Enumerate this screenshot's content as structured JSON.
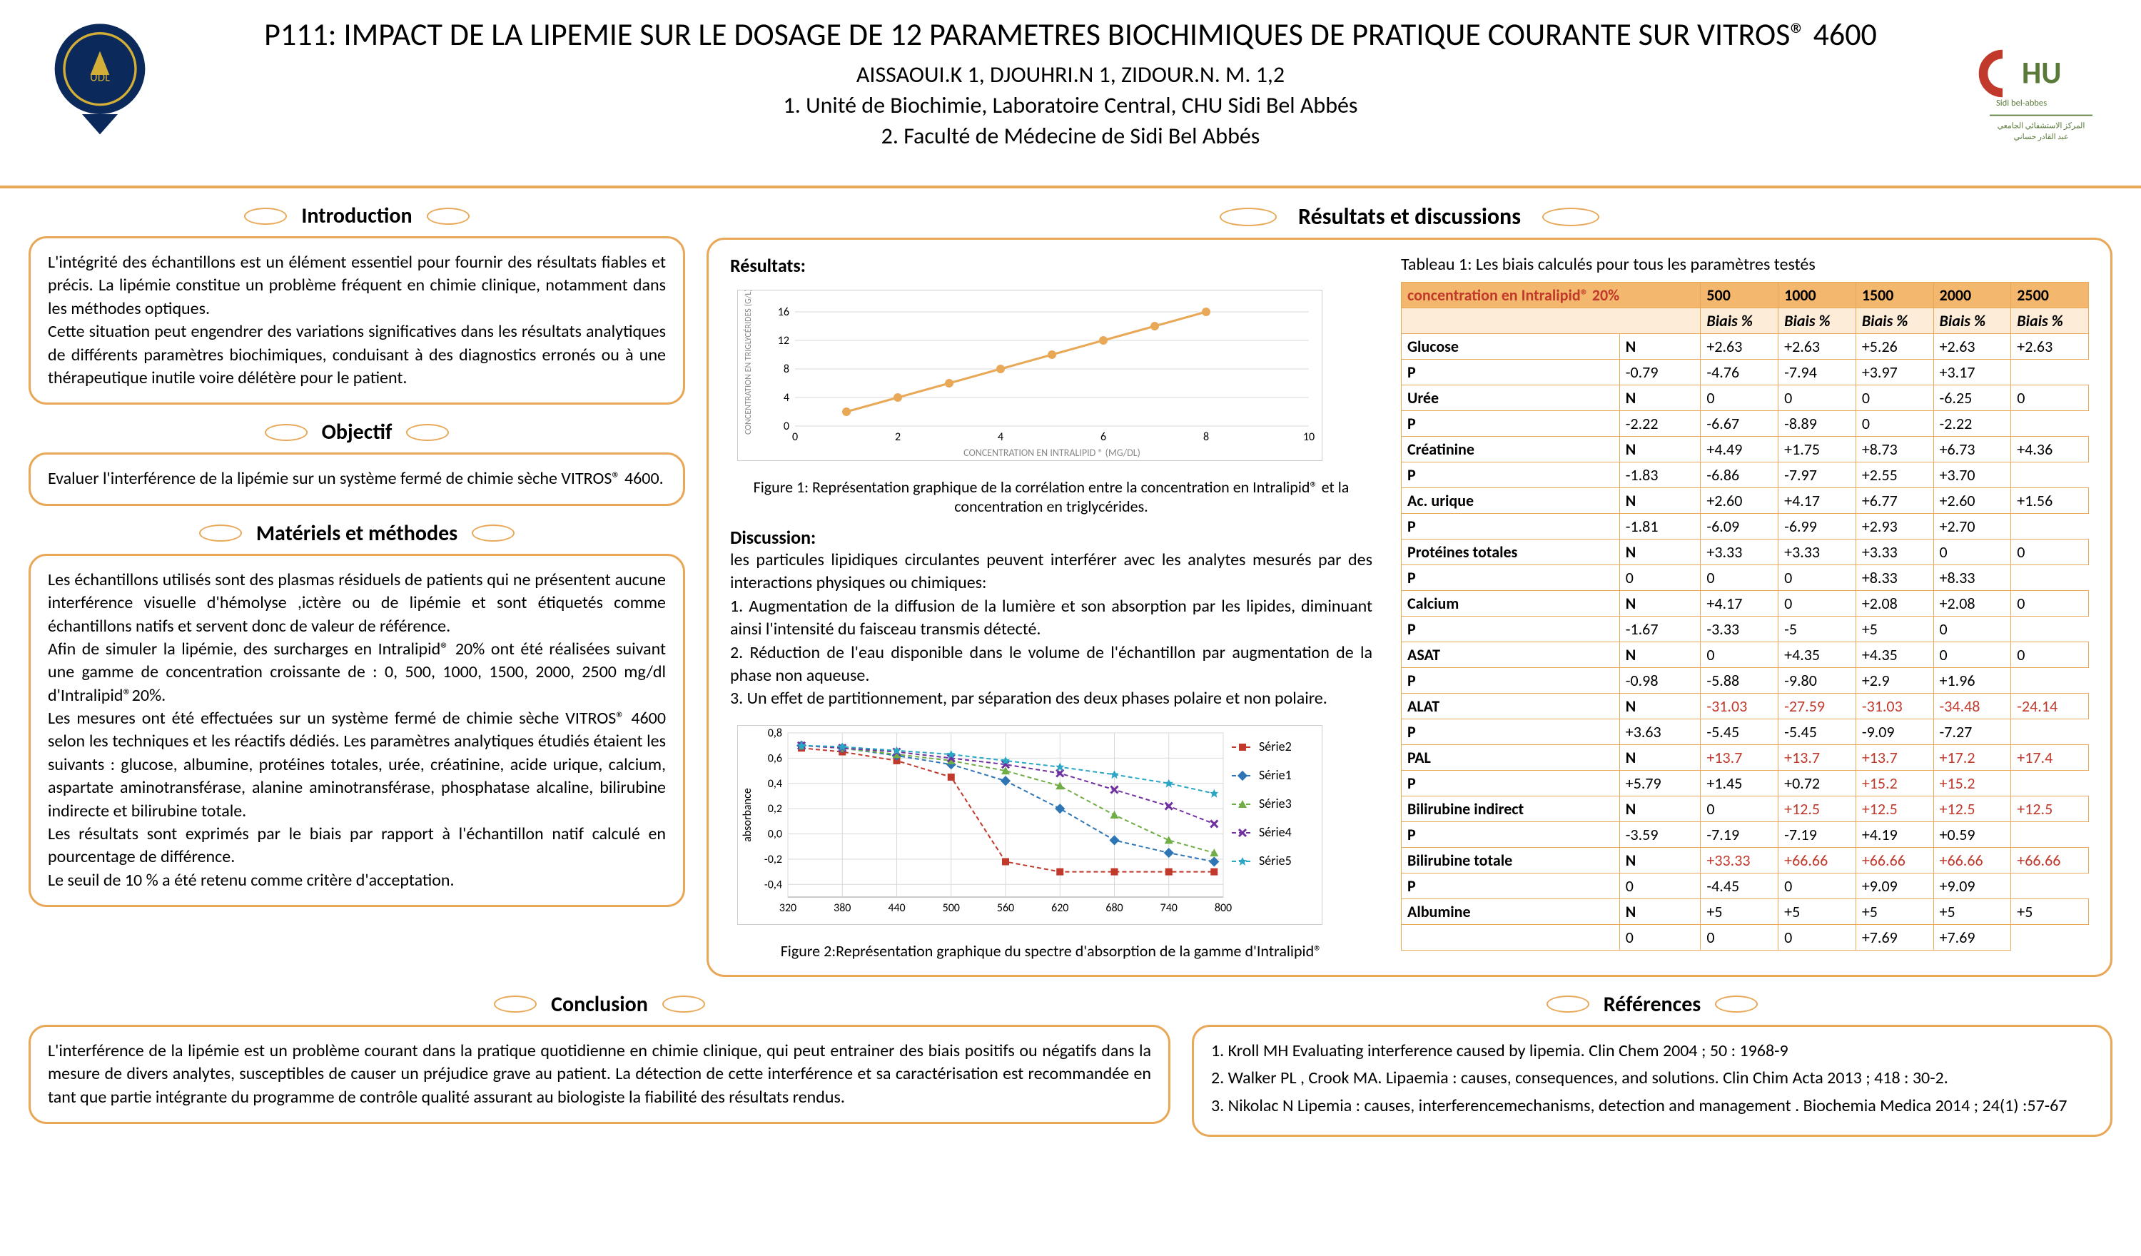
{
  "header": {
    "title": "P111: IMPACT DE LA LIPEMIE SUR LE DOSAGE DE 12 PARAMETRES BIOCHIMIQUES DE PRATIQUE COURANTE SUR VITROS® 4600",
    "authors": "AISSAOUI.K 1, DJOUHRI.N 1, ZIDOUR.N. M. 1,2",
    "affil1": "1.    Unité de Biochimie, Laboratoire Central, CHU Sidi Bel Abbés",
    "affil2": "2.    Faculté de Médecine de Sidi Bel Abbés"
  },
  "sections": {
    "intro": {
      "title": "Introduction",
      "text": "L'intégrité des échantillons est un élément essentiel pour fournir des résultats fiables et précis. La lipémie constitue un problème fréquent en chimie clinique, notamment dans les méthodes optiques.\nCette situation peut engendrer des variations significatives dans les résultats analytiques de différents paramètres biochimiques, conduisant à des diagnostics erronés ou à une thérapeutique inutile voire délétère pour le patient."
    },
    "objectif": {
      "title": "Objectif",
      "text": "Evaluer l'interférence de la lipémie sur un système fermé de chimie sèche VITROS® 4600."
    },
    "methods": {
      "title": "Matériels et méthodes",
      "text": "Les échantillons utilisés sont des plasmas résiduels de patients qui ne présentent aucune interférence visuelle d'hémolyse ,ictère ou de lipémie et sont étiquetés comme échantillons natifs et servent donc de valeur de référence.\nAfin de simuler la lipémie, des surcharges en Intralipid® 20% ont été réalisées  suivant une gamme de concentration croissante de : 0, 500, 1000, 1500, 2000, 2500 mg/dl d'Intralipid®20%.\nLes mesures ont été effectuées sur un système fermé de chimie sèche VITROS® 4600 selon les techniques et les réactifs dédiés. Les paramètres analytiques étudiés étaient les suivants : glucose, albumine, protéines totales, urée, créatinine, acide urique, calcium, aspartate aminotransférase, alanine aminotransférase, phosphatase alcaline, bilirubine indirecte et bilirubine totale.\nLes résultats sont exprimés par le biais par rapport à l'échantillon natif calculé en pourcentage de différence.\n Le seuil de 10 % a été retenu comme critère d'acceptation."
    },
    "results_title": "Résultats et discussions",
    "results_label": "Résultats:",
    "discussion_label": "Discussion:",
    "discussion_text": "les particules lipidiques circulantes peuvent interférer avec les analytes mesurés par des interactions physiques ou chimiques:\n1. Augmentation de la diffusion de la lumière et son absorption par les lipides, diminuant ainsi l'intensité du faisceau transmis détecté.\n2. Réduction de l'eau disponible dans le volume de l'échantillon par augmentation de  la phase non aqueuse.\n3.  Un effet de partitionnement, par  séparation des deux phases polaire et non polaire.",
    "conclusion": {
      "title": "Conclusion",
      "text": "L'interférence de la lipémie est un problème courant  dans la pratique quotidienne en chimie clinique, qui  peut entrainer des biais positifs ou négatifs dans la mesure de divers analytes, susceptibles de causer un préjudice grave au patient. La détection de cette interférence et sa caractérisation  est recommandée en tant que partie intégrante du programme de contrôle qualité assurant au biologiste la fiabilité des résultats  rendus."
    },
    "refs": {
      "title": "Références",
      "items": [
        "1. Kroll MH Evaluating interference caused by lipemia. Clin Chem 2004 ; 50 : 1968-9",
        "2. Walker PL , Crook MA. Lipaemia : causes, consequences, and solutions. Clin Chim Acta 2013 ; 418 : 30-2.",
        "3. Nikolac N Lipemia : causes, interferencemechanisms, detection and management . Biochemia Medica 2014 ; 24(1) :57-67"
      ]
    }
  },
  "chart1": {
    "caption": "Figure 1: Représentation graphique de la corrélation entre la concentration en Intralipid®  et  la concentration en triglycérides.",
    "xlabel": "CONCENTRATION EN INTRALIPID ® (MG/DL)",
    "ylabel": "CONCENTRATION EN TRIGLYCÉRIDES (G/L)",
    "x": [
      1,
      2,
      3,
      4,
      5,
      6,
      7,
      8
    ],
    "y": [
      2,
      4,
      6,
      8,
      10,
      12,
      14,
      16
    ],
    "xlim": [
      0,
      10
    ],
    "ylim": [
      0,
      18
    ],
    "xticks": [
      0,
      2,
      4,
      6,
      8,
      10
    ],
    "yticks": [
      0,
      4,
      8,
      12,
      16
    ],
    "line_color": "#e8a857",
    "marker_color": "#e8a857",
    "grid_color": "#d9d9d9"
  },
  "chart2": {
    "caption": "Figure 2:Représentation graphique du spectre d'absorption de la gamme d'Intralipid®",
    "xlabel": "",
    "ylabel": "absorbance",
    "xlim": [
      320,
      800
    ],
    "ylim": [
      -0.5,
      0.8
    ],
    "xticks": [
      320,
      380,
      440,
      500,
      560,
      620,
      680,
      740,
      800
    ],
    "yticks": [
      -0.4,
      -0.2,
      0,
      0.2,
      0.4,
      0.6,
      0.8
    ],
    "series": [
      {
        "name": "Série2",
        "color": "#c0392b",
        "marker": "square",
        "x": [
          335,
          380,
          440,
          500,
          560,
          620,
          680,
          740,
          790
        ],
        "y": [
          0.68,
          0.65,
          0.58,
          0.45,
          -0.22,
          -0.3,
          -0.3,
          -0.3,
          -0.3
        ]
      },
      {
        "name": "Série1",
        "color": "#2e75b6",
        "marker": "diamond",
        "x": [
          335,
          380,
          440,
          500,
          560,
          620,
          680,
          740,
          790
        ],
        "y": [
          0.7,
          0.68,
          0.62,
          0.55,
          0.42,
          0.2,
          -0.05,
          -0.15,
          -0.22
        ]
      },
      {
        "name": "Série3",
        "color": "#70ad47",
        "marker": "triangle",
        "x": [
          335,
          380,
          440,
          500,
          560,
          620,
          680,
          740,
          790
        ],
        "y": [
          0.7,
          0.68,
          0.63,
          0.58,
          0.5,
          0.38,
          0.15,
          -0.05,
          -0.15
        ]
      },
      {
        "name": "Série4",
        "color": "#7030a0",
        "marker": "x",
        "x": [
          335,
          380,
          440,
          500,
          560,
          620,
          680,
          740,
          790
        ],
        "y": [
          0.7,
          0.68,
          0.65,
          0.6,
          0.55,
          0.48,
          0.35,
          0.22,
          0.08
        ]
      },
      {
        "name": "Série5",
        "color": "#2aa7c4",
        "marker": "star",
        "x": [
          335,
          380,
          440,
          500,
          560,
          620,
          680,
          740,
          790
        ],
        "y": [
          0.7,
          0.69,
          0.66,
          0.63,
          0.58,
          0.53,
          0.47,
          0.4,
          0.32
        ]
      }
    ],
    "grid_color": "#d9d9d9"
  },
  "table": {
    "title": "Tableau 1: Les biais calculés pour tous les paramètres testés",
    "header_param": "concentration en Intralipid® 20%",
    "conc_cols": [
      "500",
      "1000",
      "1500",
      "2000",
      "2500"
    ],
    "bias_label": "Biais %",
    "rows": [
      {
        "param": "Glucose",
        "np": "N",
        "v": [
          "+2.63",
          "+2.63",
          "+5.26",
          "+2.63",
          "+2.63"
        ],
        "red": []
      },
      {
        "param": "",
        "np": "P",
        "v": [
          "-0.79",
          "-4.76",
          "-7.94",
          "+3.97",
          "+3.17"
        ],
        "red": []
      },
      {
        "param": "Urée",
        "np": "N",
        "v": [
          "0",
          "0",
          "0",
          "-6.25",
          "0"
        ],
        "red": []
      },
      {
        "param": "",
        "np": "P",
        "v": [
          "-2.22",
          "-6.67",
          "-8.89",
          "0",
          "-2.22"
        ],
        "red": []
      },
      {
        "param": "Créatinine",
        "np": "N",
        "v": [
          "+4.49",
          "+1.75",
          "+8.73",
          "+6.73",
          "+4.36"
        ],
        "red": []
      },
      {
        "param": "",
        "np": "P",
        "v": [
          "-1.83",
          "-6.86",
          "-7.97",
          "+2.55",
          "+3.70"
        ],
        "red": []
      },
      {
        "param": "Ac. urique",
        "np": "N",
        "v": [
          "+2.60",
          "+4.17",
          "+6.77",
          "+2.60",
          "+1.56"
        ],
        "red": []
      },
      {
        "param": "",
        "np": "P",
        "v": [
          "-1.81",
          "-6.09",
          "-6.99",
          "+2.93",
          "+2.70"
        ],
        "red": []
      },
      {
        "param": "Protéines totales",
        "np": "N",
        "v": [
          "+3.33",
          "+3.33",
          "+3.33",
          "0",
          "0"
        ],
        "red": []
      },
      {
        "param": "",
        "np": "P",
        "v": [
          "0",
          "0",
          "0",
          "+8.33",
          "+8.33"
        ],
        "red": []
      },
      {
        "param": "Calcium",
        "np": "N",
        "v": [
          "+4.17",
          "0",
          "+2.08",
          "+2.08",
          "0"
        ],
        "red": []
      },
      {
        "param": "",
        "np": "P",
        "v": [
          "-1.67",
          "-3.33",
          "-5",
          "+5",
          "0"
        ],
        "red": []
      },
      {
        "param": "ASAT",
        "np": "N",
        "v": [
          "0",
          "+4.35",
          "+4.35",
          "0",
          "0"
        ],
        "red": []
      },
      {
        "param": "",
        "np": "P",
        "v": [
          "-0.98",
          "-5.88",
          "-9.80",
          "+2.9",
          "+1.96"
        ],
        "red": []
      },
      {
        "param": "ALAT",
        "np": "N",
        "v": [
          "-31.03",
          "-27.59",
          "-31.03",
          "-34.48",
          "-24.14"
        ],
        "red": [
          0,
          1,
          2,
          3,
          4
        ]
      },
      {
        "param": "",
        "np": "P",
        "v": [
          "+3.63",
          "-5.45",
          "-5.45",
          "-9.09",
          "-7.27"
        ],
        "red": []
      },
      {
        "param": "PAL",
        "np": "N",
        "v": [
          "+13.7",
          "+13.7",
          "+13.7",
          "+17.2",
          "+17.4"
        ],
        "red": [
          0,
          1,
          2,
          3,
          4
        ]
      },
      {
        "param": "",
        "np": "P",
        "v": [
          "+5.79",
          "+1.45",
          "+0.72",
          "+15.2",
          "+15.2"
        ],
        "red": [
          3,
          4
        ]
      },
      {
        "param": "Bilirubine indirect",
        "np": "N",
        "v": [
          "0",
          "+12.5",
          "+12.5",
          "+12.5",
          "+12.5"
        ],
        "red": [
          1,
          2,
          3,
          4
        ]
      },
      {
        "param": "",
        "np": "P",
        "v": [
          "-3.59",
          "-7.19",
          "-7.19",
          "+4.19",
          "+0.59"
        ],
        "red": []
      },
      {
        "param": "Bilirubine totale",
        "np": "N",
        "v": [
          "+33.33",
          "+66.66",
          "+66.66",
          "+66.66",
          "+66.66"
        ],
        "red": [
          0,
          1,
          2,
          3,
          4
        ]
      },
      {
        "param": "",
        "np": "P",
        "v": [
          "0",
          "-4.45",
          "0",
          "+9.09",
          "+9.09"
        ],
        "red": []
      },
      {
        "param": "Albumine",
        "np": "N",
        "v": [
          "+5",
          "+5",
          "+5",
          "+5",
          "+5"
        ],
        "red": []
      },
      {
        "param": "",
        "np": "",
        "v": [
          "0",
          "0",
          "0",
          "+7.69",
          "+7.69"
        ],
        "red": []
      }
    ]
  }
}
